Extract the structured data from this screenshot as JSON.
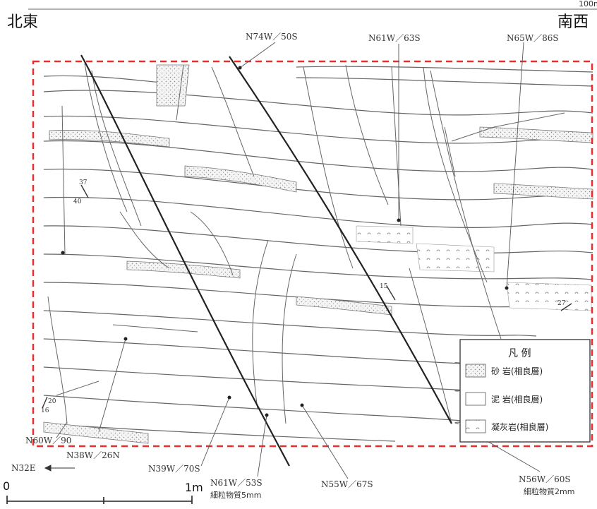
{
  "corner_scale": "100m",
  "direction": {
    "left": "北東",
    "right": "南西"
  },
  "annotations": {
    "top_a": "N74W／50S",
    "top_b": "N61W／63S",
    "top_c": "N65W／86S",
    "left_a": "N60W／90",
    "left_b": "N38W／26N",
    "bottom_a": "N39W／70S",
    "bottom_b": "N61W／53S",
    "bottom_b2": "細粒物質5mm",
    "bottom_c": "N55W／67S",
    "bottom_d": "N56W／60S",
    "bottom_d2": "細粒物質2mm",
    "arrow_label": "N32E",
    "dip_marks": [
      "37",
      "40",
      "15",
      "16",
      "20",
      "27"
    ]
  },
  "scalebar": {
    "start": "0",
    "end": "1m"
  },
  "legend": {
    "title": "凡 例",
    "items": [
      {
        "label": "砂 岩(相良層)",
        "pattern": "sand"
      },
      {
        "label": "泥 岩(相良層)",
        "pattern": "mud"
      },
      {
        "label": "凝灰岩(相良層)",
        "pattern": "tuff"
      }
    ]
  },
  "colors": {
    "frame": "#e03030",
    "line": "#555555",
    "fault": "#222222"
  }
}
